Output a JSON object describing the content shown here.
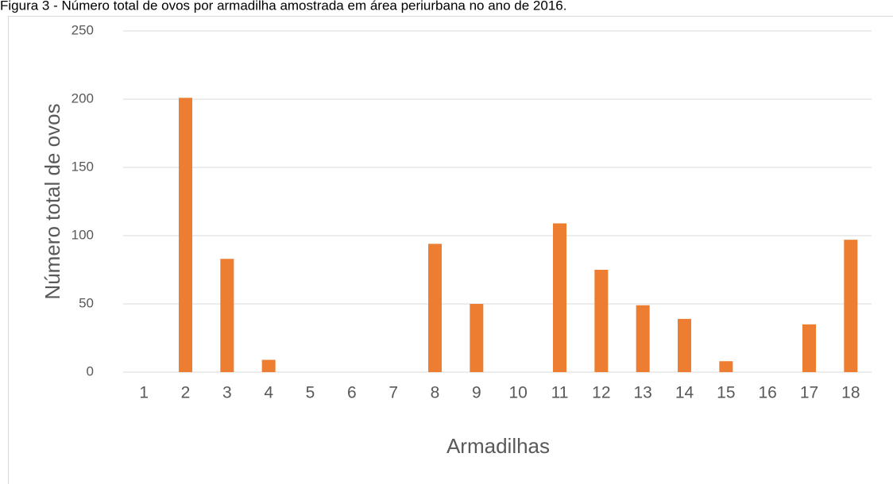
{
  "chart_data": {
    "type": "bar",
    "title": "Figura 3 - Número total de ovos por armadilha amostrada em área periurbana no ano de 2016.",
    "x_label": "Armadilhas",
    "y_label": "Número total de ovos",
    "categories": [
      "1",
      "2",
      "3",
      "4",
      "5",
      "6",
      "7",
      "8",
      "9",
      "10",
      "11",
      "12",
      "13",
      "14",
      "15",
      "16",
      "17",
      "18"
    ],
    "values": [
      0,
      201,
      83,
      9,
      0,
      0,
      0,
      94,
      50,
      0,
      109,
      75,
      49,
      39,
      8,
      0,
      35,
      97
    ],
    "color": "#ed7d31",
    "ylim": [
      0,
      250
    ],
    "yticks": [
      0,
      50,
      100,
      150,
      200,
      250
    ],
    "grid": true
  }
}
